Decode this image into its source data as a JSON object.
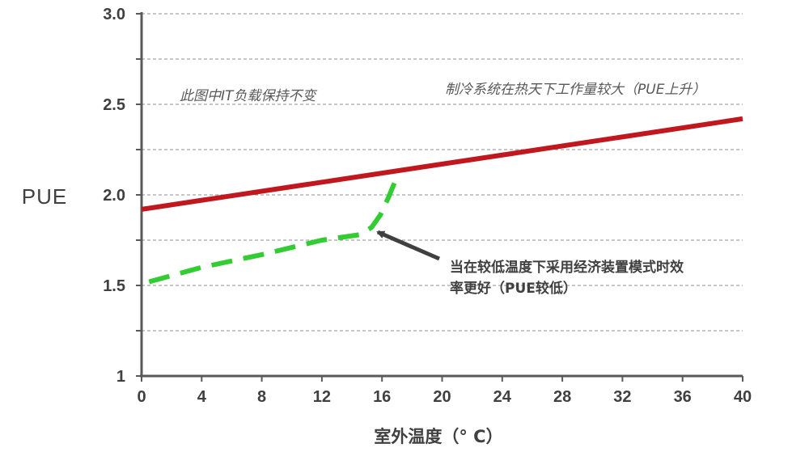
{
  "chart_data": {
    "type": "line",
    "xlabel": "室外温度（° C）",
    "ylabel": "PUE",
    "xlim": [
      0,
      40
    ],
    "ylim": [
      1,
      3
    ],
    "x_ticks": [
      "0",
      "4",
      "8",
      "12",
      "16",
      "20",
      "24",
      "28",
      "32",
      "36",
      "40"
    ],
    "y_ticks": [
      "1",
      "1.5",
      "2.0",
      "2.5",
      "3.0"
    ],
    "grid": "horizontal dashed",
    "series": [
      {
        "style": "solid",
        "color": "#c0181e",
        "x": [
          0,
          40
        ],
        "y": [
          1.92,
          2.42
        ]
      },
      {
        "style": "dashed",
        "color": "#33cc33",
        "x": [
          0.5,
          4,
          8,
          12,
          14.5,
          15.3,
          15.9,
          16.4,
          16.9
        ],
        "y": [
          1.52,
          1.6,
          1.67,
          1.75,
          1.78,
          1.82,
          1.89,
          1.98,
          2.08
        ]
      }
    ],
    "annotations": [
      {
        "text": "此图中IT负载保持不变"
      },
      {
        "text": "制冷系统在热天下工作量较大（PUE上升）"
      },
      {
        "line1": "当在较低温度下采用经济装置模式时效",
        "line2": "率更好（PUE较低）"
      }
    ]
  }
}
